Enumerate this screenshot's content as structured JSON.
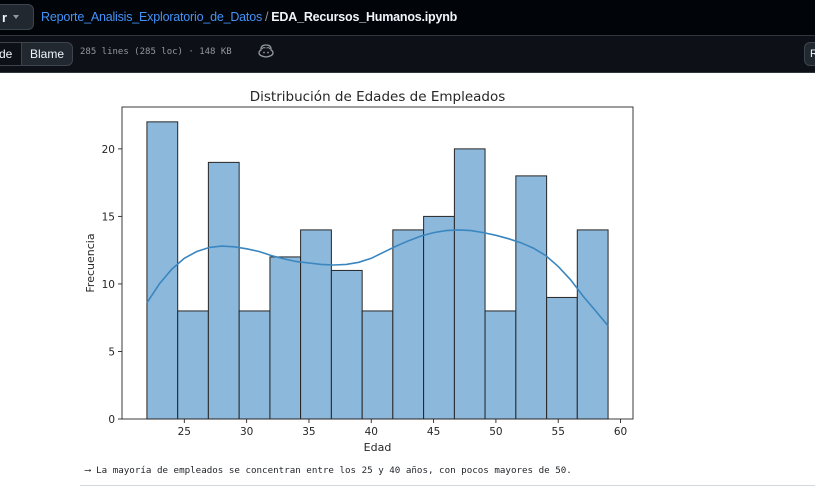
{
  "header": {
    "branch_label": "r",
    "repo_link": "Reporte_Analisis_Exploratorio_de_Datos",
    "separator": "/",
    "file_name": "EDA_Recursos_Humanos.ipynb"
  },
  "toolbar": {
    "code_label": "de",
    "blame_label": "Blame",
    "file_info": "285 lines (285 loc) · 148 KB",
    "raw_label": "R"
  },
  "colors": {
    "bar_fill": "#8cb8dc",
    "bar_stroke": "#262626",
    "kde_line": "#3a86bf",
    "link": "#4493f8"
  },
  "icons": {
    "branch_caret": "chevron-down-icon",
    "copilot": "copilot-icon"
  },
  "chart_data": {
    "type": "bar",
    "title": "Distribución de Edades de Empleados",
    "xlabel": "Edad",
    "ylabel": "Frecuencia",
    "bin_edges": [
      22,
      24.47,
      26.93,
      29.4,
      31.87,
      34.33,
      36.8,
      39.27,
      41.73,
      44.2,
      46.67,
      49.13,
      51.6,
      54.07,
      56.53,
      59
    ],
    "values": [
      22,
      8,
      19,
      8,
      12,
      14,
      11,
      8,
      14,
      15,
      20,
      8,
      18,
      9,
      14
    ],
    "kde": {
      "x": [
        22,
        23,
        24,
        25,
        26,
        27,
        28,
        29,
        30,
        31,
        32,
        33,
        34,
        35,
        36,
        37,
        38,
        39,
        40,
        41,
        42,
        43,
        44,
        45,
        46,
        47,
        48,
        49,
        50,
        51,
        52,
        53,
        54,
        55,
        56,
        57,
        58,
        59
      ],
      "y": [
        8.6,
        10.0,
        11.1,
        11.9,
        12.4,
        12.7,
        12.8,
        12.75,
        12.6,
        12.4,
        12.1,
        11.85,
        11.65,
        11.55,
        11.45,
        11.4,
        11.45,
        11.6,
        11.9,
        12.35,
        12.8,
        13.2,
        13.55,
        13.8,
        13.95,
        14.0,
        13.95,
        13.8,
        13.6,
        13.35,
        13.05,
        12.65,
        12.1,
        11.3,
        10.3,
        9.1,
        8.0,
        6.9
      ]
    },
    "xlim": [
      20,
      61
    ],
    "ylim": [
      0,
      23.1
    ],
    "x_ticks": [
      25,
      30,
      35,
      40,
      45,
      50,
      55,
      60
    ],
    "y_ticks": [
      0,
      5,
      10,
      15,
      20
    ],
    "grid": false,
    "legend": "none"
  },
  "caption": {
    "arrow": "⟶",
    "text": "La mayoría de empleados se concentran entre los 25 y 40 años, con pocos mayores de 50."
  }
}
